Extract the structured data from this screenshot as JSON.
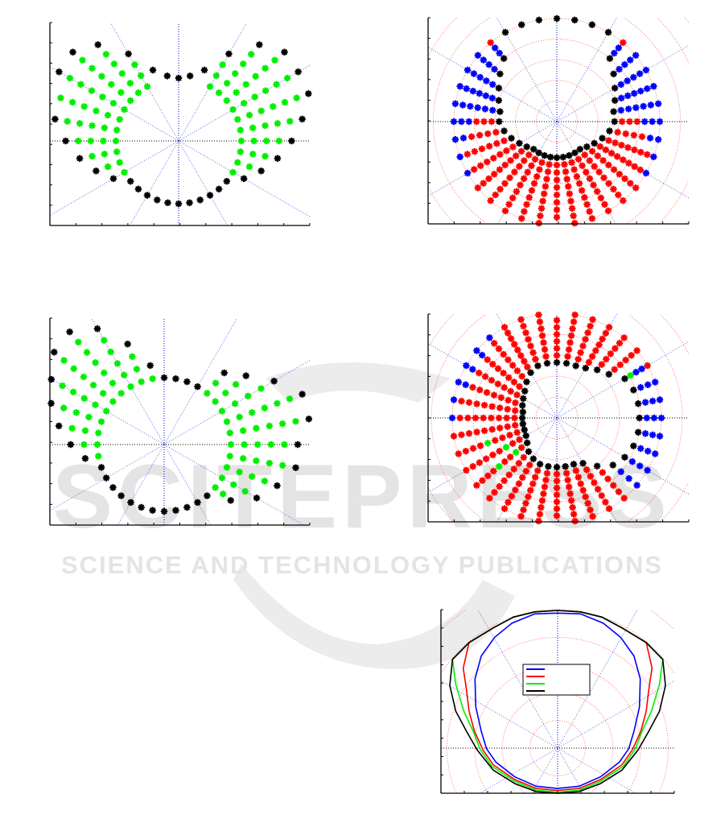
{
  "watermark": {
    "brand": "SCITEPRESS",
    "tagline": "SCIENCE AND TECHNOLOGY PUBLICATIONS"
  },
  "colors": {
    "k": "#000000",
    "g": "#00ee00",
    "r": "#ff0000",
    "b": "#0000ff",
    "grid_ray": "#0000cc",
    "grid_circle": "#ff3333"
  },
  "chart_data": [
    {
      "type": "scatter",
      "panel": "top-left",
      "marker": "asterisk",
      "grid": "radial rays",
      "rays": [
        [
          0,
          1.0,
          1.8,
          "ggggk"
        ],
        [
          10,
          1.0,
          2.0,
          "gggggk"
        ],
        [
          20,
          1.0,
          2.2,
          "ggggggk"
        ],
        [
          30,
          1.0,
          2.2,
          "ggggggk"
        ],
        [
          40,
          1.0,
          2.2,
          "ggggggk"
        ],
        [
          50,
          1.0,
          2.0,
          "gggggk"
        ],
        [
          60,
          1.0,
          1.6,
          "gggk"
        ],
        [
          70,
          1.2,
          1.2,
          "k"
        ],
        [
          80,
          1.05,
          1.05,
          "k"
        ],
        [
          90,
          1.0,
          1.0,
          "k"
        ],
        [
          100,
          1.05,
          1.05,
          "k"
        ],
        [
          110,
          1.2,
          1.2,
          "k"
        ],
        [
          120,
          1.0,
          1.6,
          "gggk"
        ],
        [
          130,
          1.0,
          2.0,
          "gggggk"
        ],
        [
          140,
          1.0,
          2.2,
          "ggggggk"
        ],
        [
          150,
          1.0,
          2.2,
          "ggggggk"
        ],
        [
          160,
          1.0,
          2.2,
          "ggggggk"
        ],
        [
          170,
          1.0,
          2.0,
          "gggggk"
        ],
        [
          180,
          1.0,
          1.8,
          "ggggk"
        ],
        [
          190,
          1.0,
          1.6,
          "gggk"
        ],
        [
          200,
          1.0,
          1.4,
          "ggk"
        ],
        [
          210,
          1.0,
          1.2,
          "gk"
        ],
        [
          220,
          1.0,
          1.0,
          "k"
        ],
        [
          230,
          1.0,
          1.0,
          "k"
        ],
        [
          240,
          1.0,
          1.0,
          "k"
        ],
        [
          250,
          1.0,
          1.0,
          "k"
        ],
        [
          260,
          1.0,
          1.0,
          "k"
        ],
        [
          270,
          1.0,
          1.0,
          "k"
        ],
        [
          280,
          1.0,
          1.0,
          "k"
        ],
        [
          290,
          1.0,
          1.0,
          "k"
        ],
        [
          300,
          1.0,
          1.0,
          "k"
        ],
        [
          310,
          1.0,
          1.0,
          "k"
        ],
        [
          320,
          1.0,
          1.0,
          "k"
        ],
        [
          330,
          1.0,
          1.2,
          "gk"
        ],
        [
          340,
          1.0,
          1.4,
          "ggk"
        ],
        [
          350,
          1.0,
          1.6,
          "gggk"
        ]
      ]
    },
    {
      "type": "scatter",
      "panel": "top-right",
      "marker": "asterisk",
      "grid": "polar",
      "rays": [
        [
          0,
          0.56,
          1.0,
          "krrrbbb"
        ],
        [
          10,
          0.56,
          1.0,
          "kbbbbbb"
        ],
        [
          20,
          0.6,
          1.0,
          "kbbbbbb"
        ],
        [
          30,
          0.65,
          1.0,
          "kbbbbb"
        ],
        [
          40,
          0.72,
          1.0,
          "kbbbb"
        ],
        [
          50,
          0.8,
          1.0,
          "kbbr"
        ],
        [
          60,
          1.0,
          1.0,
          "k"
        ],
        [
          70,
          1.0,
          1.0,
          "k"
        ],
        [
          80,
          1.0,
          1.0,
          "k"
        ],
        [
          90,
          1.0,
          1.0,
          "k"
        ],
        [
          100,
          1.0,
          1.0,
          "k"
        ],
        [
          110,
          1.0,
          1.0,
          "k"
        ],
        [
          120,
          1.0,
          1.0,
          "k"
        ],
        [
          130,
          0.8,
          1.0,
          "kbbr"
        ],
        [
          140,
          0.72,
          1.0,
          "kbbbb"
        ],
        [
          150,
          0.65,
          1.0,
          "kbbbbb"
        ],
        [
          160,
          0.6,
          1.0,
          "kbbbbbb"
        ],
        [
          170,
          0.56,
          1.0,
          "kbbbbbb"
        ],
        [
          180,
          0.56,
          1.0,
          "krrrbbb"
        ],
        [
          190,
          0.52,
          1.0,
          "krrrrbb"
        ],
        [
          200,
          0.47,
          1.0,
          "krrrrrrb"
        ],
        [
          210,
          0.42,
          1.0,
          "krrrrrrrb"
        ],
        [
          220,
          0.38,
          1.0,
          "krrrrrrrrr"
        ],
        [
          230,
          0.35,
          1.0,
          "krrrrrrrrr"
        ],
        [
          240,
          0.35,
          1.0,
          "krrrrrrrrr"
        ],
        [
          250,
          0.35,
          1.0,
          "krrrrrrrrr"
        ],
        [
          260,
          0.35,
          1.0,
          "krrrrrrrrr"
        ],
        [
          270,
          0.35,
          1.0,
          "krrrrrrrrr"
        ],
        [
          280,
          0.35,
          1.0,
          "krrrrrrrrr"
        ],
        [
          290,
          0.35,
          1.0,
          "krrrrrrrrr"
        ],
        [
          300,
          0.35,
          1.0,
          "krrrrrrrrr"
        ],
        [
          310,
          0.35,
          1.0,
          "krrrrrrrrr"
        ],
        [
          320,
          0.38,
          1.0,
          "krrrrrrrrr"
        ],
        [
          330,
          0.42,
          1.0,
          "krrrrrrrrb"
        ],
        [
          340,
          0.47,
          1.0,
          "krrrrrrrb"
        ],
        [
          350,
          0.52,
          1.0,
          "krrrrbb"
        ]
      ]
    },
    {
      "type": "scatter",
      "panel": "middle-left",
      "marker": "asterisk",
      "grid": "radial rays",
      "rays": [
        [
          0,
          1.0,
          2.0,
          "gggggk"
        ],
        [
          10,
          1.0,
          2.2,
          "ggggggk"
        ],
        [
          20,
          1.0,
          2.2,
          "ggggggk"
        ],
        [
          30,
          1.0,
          1.9,
          "ggggk"
        ],
        [
          40,
          1.0,
          1.6,
          "gggk"
        ],
        [
          50,
          1.0,
          1.4,
          "ggk"
        ],
        [
          60,
          1.0,
          1.0,
          "k"
        ],
        [
          70,
          1.0,
          1.0,
          "k"
        ],
        [
          80,
          1.0,
          1.0,
          "k"
        ],
        [
          90,
          1.0,
          1.0,
          "k"
        ],
        [
          100,
          1.0,
          1.2,
          "gk"
        ],
        [
          110,
          1.0,
          1.6,
          "gggk"
        ],
        [
          120,
          1.0,
          2.0,
          "gggggk"
        ],
        [
          130,
          1.0,
          2.2,
          "ggggggk"
        ],
        [
          140,
          1.0,
          2.15,
          "ggggggk"
        ],
        [
          150,
          1.0,
          1.95,
          "gggggk"
        ],
        [
          160,
          1.0,
          1.8,
          "ggggk"
        ],
        [
          170,
          1.0,
          1.6,
          "gggk"
        ],
        [
          180,
          1.0,
          1.4,
          "ggk"
        ],
        [
          190,
          1.0,
          1.2,
          "gk"
        ],
        [
          200,
          1.0,
          1.0,
          "k"
        ],
        [
          210,
          1.0,
          1.0,
          "k"
        ],
        [
          220,
          1.0,
          1.0,
          "k"
        ],
        [
          230,
          1.0,
          1.0,
          "k"
        ],
        [
          240,
          1.0,
          1.0,
          "k"
        ],
        [
          250,
          1.0,
          1.0,
          "k"
        ],
        [
          260,
          1.0,
          1.0,
          "k"
        ],
        [
          270,
          1.0,
          1.0,
          "k"
        ],
        [
          280,
          1.0,
          1.0,
          "k"
        ],
        [
          290,
          1.0,
          1.0,
          "k"
        ],
        [
          300,
          1.0,
          1.0,
          "k"
        ],
        [
          310,
          1.0,
          1.0,
          "k"
        ],
        [
          320,
          1.0,
          1.3,
          "ggk"
        ],
        [
          330,
          1.0,
          1.6,
          "gggk"
        ],
        [
          340,
          1.0,
          1.8,
          "ggggk"
        ],
        [
          350,
          1.0,
          2.0,
          "gggggk"
        ]
      ]
    },
    {
      "type": "scatter",
      "panel": "middle-right",
      "marker": "asterisk",
      "grid": "polar",
      "rays": [
        [
          0,
          0.79,
          1.0,
          "kbbb"
        ],
        [
          10,
          0.79,
          1.0,
          "kbbb"
        ],
        [
          20,
          0.78,
          1.0,
          "kbbb"
        ],
        [
          30,
          0.75,
          1.0,
          "kgbbr"
        ],
        [
          40,
          0.65,
          1.0,
          "krrrrr"
        ],
        [
          50,
          0.6,
          1.0,
          "krrrrrr"
        ],
        [
          60,
          0.55,
          1.0,
          "krrrrrrr"
        ],
        [
          70,
          0.53,
          1.0,
          "krrrrrrr"
        ],
        [
          80,
          0.53,
          1.0,
          "krrrrrrr"
        ],
        [
          90,
          0.53,
          1.0,
          "krrrrrrr"
        ],
        [
          100,
          0.53,
          1.0,
          "krrrrrrr"
        ],
        [
          110,
          0.53,
          1.0,
          "krrrrrrr"
        ],
        [
          120,
          0.5,
          1.0,
          "krrrrrrrr"
        ],
        [
          130,
          0.45,
          1.0,
          "krrrrrrrb"
        ],
        [
          140,
          0.4,
          1.0,
          "krrrrrrrbb"
        ],
        [
          150,
          0.37,
          1.0,
          "krrrrrrrbb"
        ],
        [
          160,
          0.35,
          1.0,
          "krrrrrrrbb"
        ],
        [
          170,
          0.33,
          1.0,
          "krrrrrrrrb"
        ],
        [
          180,
          0.33,
          1.0,
          "krrrrrrrrb"
        ],
        [
          190,
          0.33,
          1.0,
          "krrrrrrrrr"
        ],
        [
          200,
          0.33,
          1.0,
          "krrrrgrrrr"
        ],
        [
          210,
          0.34,
          1.0,
          "krrgrrrrrr"
        ],
        [
          220,
          0.37,
          1.0,
          "krgrrgrrrr"
        ],
        [
          230,
          0.42,
          1.0,
          "krrrrrrrr"
        ],
        [
          240,
          0.45,
          1.0,
          "krrrrrrrr"
        ],
        [
          250,
          0.47,
          1.0,
          "krrrrrrrr"
        ],
        [
          260,
          0.47,
          1.0,
          "krrrrrrrr"
        ],
        [
          270,
          0.47,
          1.0,
          "krrrrrrrr"
        ],
        [
          280,
          0.47,
          1.0,
          "krrrrrrrr"
        ],
        [
          290,
          0.47,
          1.0,
          "krrrrrrrr"
        ],
        [
          300,
          0.5,
          1.0,
          "krrrrrrr"
        ],
        [
          310,
          0.6,
          1.0,
          "krrrrr"
        ],
        [
          320,
          0.7,
          1.0,
          "kbbb"
        ],
        [
          330,
          0.75,
          1.0,
          "kbbb"
        ],
        [
          340,
          0.78,
          1.0,
          "kbbb"
        ],
        [
          350,
          0.79,
          1.0,
          "kbbb"
        ]
      ]
    },
    {
      "type": "line",
      "panel": "bottom-right",
      "grid": "polar",
      "legend": {
        "placement": "center",
        "entries": [
          {
            "color": "#0000ff"
          },
          {
            "color": "#ff0000"
          },
          {
            "color": "#00ee00"
          },
          {
            "color": "#000000"
          }
        ]
      },
      "series": [
        {
          "color": "#0000ff",
          "points": [
            [
              0,
              0.975
            ],
            [
              0.165,
              0.969
            ],
            [
              0.329,
              0.903
            ],
            [
              0.455,
              0.8
            ],
            [
              0.552,
              0.665
            ],
            [
              0.597,
              0.5
            ],
            [
              0.591,
              0.297
            ],
            [
              0.552,
              0.122
            ],
            [
              0.514,
              -0.004
            ],
            [
              0.446,
              -0.101
            ],
            [
              0.31,
              -0.207
            ],
            [
              0.155,
              -0.275
            ],
            [
              0,
              -0.291
            ]
          ]
        },
        {
          "color": "#ff0000",
          "points": [
            [
              0,
              0.994
            ],
            [
              0.165,
              0.984
            ],
            [
              0.32,
              0.946
            ],
            [
              0.465,
              0.868
            ],
            [
              0.64,
              0.762
            ],
            [
              0.682,
              0.578
            ],
            [
              0.659,
              0.422
            ],
            [
              0.64,
              0.267
            ],
            [
              0.601,
              0.122
            ],
            [
              0.539,
              -0.014
            ],
            [
              0.465,
              -0.12
            ],
            [
              0.31,
              -0.227
            ],
            [
              0.155,
              -0.291
            ],
            [
              0,
              -0.306
            ]
          ]
        },
        {
          "color": "#00ee00",
          "points": [
            [
              0,
              0.994
            ],
            [
              0.165,
              0.984
            ],
            [
              0.32,
              0.946
            ],
            [
              0.465,
              0.868
            ],
            [
              0.64,
              0.762
            ],
            [
              0.76,
              0.64
            ],
            [
              0.736,
              0.461
            ],
            [
              0.678,
              0.267
            ],
            [
              0.61,
              0.122
            ],
            [
              0.562,
              -0.004
            ],
            [
              0.475,
              -0.13
            ],
            [
              0.31,
              -0.24
            ],
            [
              0.155,
              -0.304
            ],
            [
              0,
              -0.318
            ]
          ]
        },
        {
          "color": "#000000",
          "points": [
            [
              0,
              0.994
            ],
            [
              0.165,
              0.984
            ],
            [
              0.32,
              0.946
            ],
            [
              0.465,
              0.868
            ],
            [
              0.64,
              0.762
            ],
            [
              0.76,
              0.64
            ],
            [
              0.779,
              0.452
            ],
            [
              0.736,
              0.267
            ],
            [
              0.659,
              0.122
            ],
            [
              0.581,
              -0.014
            ],
            [
              0.465,
              -0.159
            ],
            [
              0.31,
              -0.256
            ],
            [
              0.155,
              -0.314
            ],
            [
              0,
              -0.326
            ]
          ]
        }
      ]
    }
  ]
}
